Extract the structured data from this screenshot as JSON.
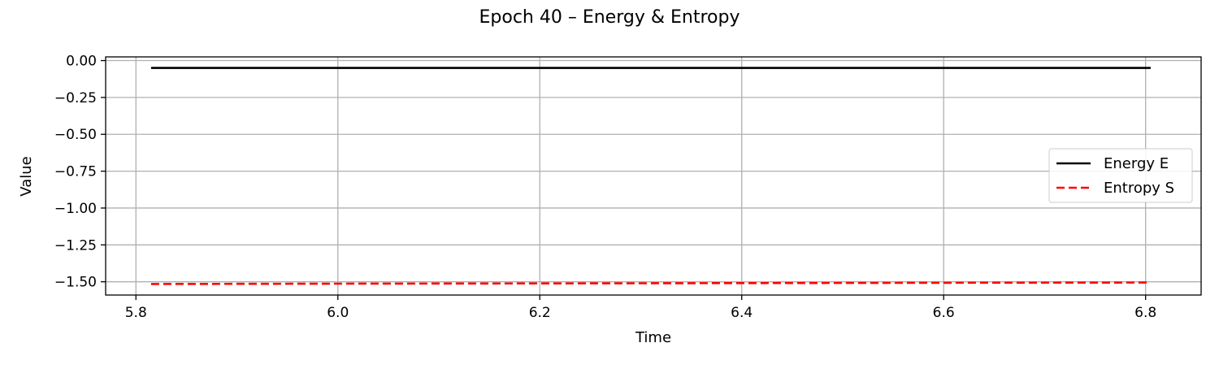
{
  "chart_data": {
    "type": "line",
    "title": "Epoch 40 – Energy & Entropy",
    "xlabel": "Time",
    "ylabel": "Value",
    "xlim": [
      5.77,
      6.855
    ],
    "ylim": [
      -1.59,
      0.025
    ],
    "xticks": [
      5.8,
      6.0,
      6.2,
      6.4,
      6.6,
      6.8
    ],
    "xtick_labels": [
      "5.8",
      "6.0",
      "6.2",
      "6.4",
      "6.6",
      "6.8"
    ],
    "yticks": [
      0.0,
      -0.25,
      -0.5,
      -0.75,
      -1.0,
      -1.25,
      -1.5
    ],
    "ytick_labels": [
      "0.00",
      "−0.25",
      "−0.50",
      "−0.75",
      "−1.00",
      "−1.25",
      "−1.50"
    ],
    "grid": true,
    "legend_position": "center-right",
    "series": [
      {
        "name": "Energy E",
        "color": "#000000",
        "style": "solid",
        "x": [
          5.815,
          6.0,
          6.2,
          6.4,
          6.6,
          6.805
        ],
        "y": [
          -0.05,
          -0.05,
          -0.05,
          -0.05,
          -0.05,
          -0.05
        ]
      },
      {
        "name": "Entropy S",
        "color": "#ff0000",
        "style": "dashed",
        "x": [
          5.815,
          6.0,
          6.2,
          6.4,
          6.6,
          6.805
        ],
        "y": [
          -1.515,
          -1.513,
          -1.511,
          -1.509,
          -1.507,
          -1.505
        ]
      }
    ]
  }
}
